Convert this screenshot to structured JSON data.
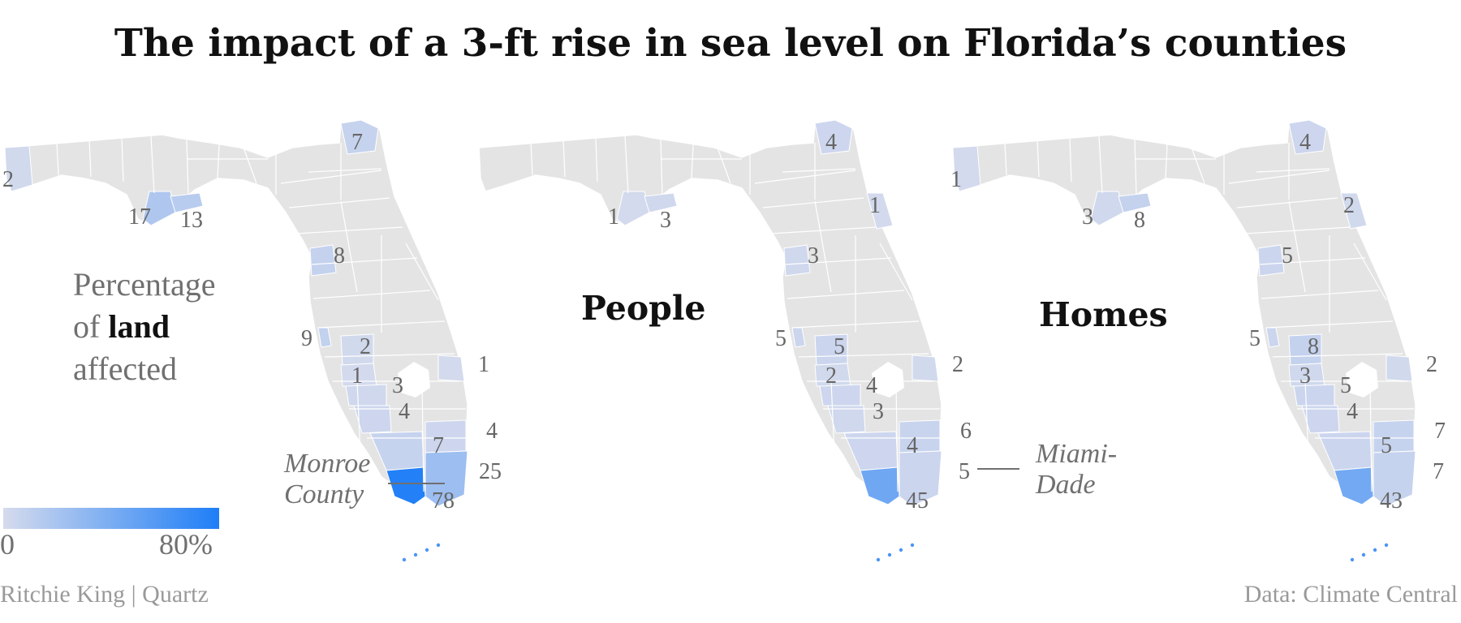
{
  "title": "The impact of a 3-ft rise in sea level on Florida’s counties",
  "colors": {
    "land": "#e4e4e4",
    "border": "#ffffff",
    "scale_low": "#d6dbed",
    "scale_high": "#1e7ef7"
  },
  "legend": {
    "line1": "Percentage",
    "line2_prefix": "of ",
    "line2_bold": "land",
    "line3": "affected",
    "min": "0",
    "max": "80%"
  },
  "panels": [
    {
      "id": "land",
      "label": "",
      "values": {
        "escambia": "2",
        "franklin": "17",
        "wakulla": "13",
        "nassau": "7",
        "pasco": "8",
        "pinellas": "9",
        "hillsborough": "2",
        "manatee": "1",
        "sarasota": "3",
        "charlotte": "4",
        "collier": "7",
        "palmbeach": "1",
        "broward": "4",
        "miamidade": "25",
        "monroe": "78"
      }
    },
    {
      "id": "people",
      "label": "People",
      "values": {
        "franklin": "1",
        "wakulla": "3",
        "nassau": "4",
        "flagler": "1",
        "pasco": "3",
        "pinellas": "5",
        "hillsborough": "5",
        "manatee": "2",
        "sarasota": "4",
        "charlotte": "3",
        "collier": "4",
        "palmbeach": "2",
        "broward": "6",
        "miamidade": "5",
        "monroe": "45"
      }
    },
    {
      "id": "homes",
      "label": "Homes",
      "values": {
        "escambia": "1",
        "franklin": "3",
        "wakulla": "8",
        "nassau": "4",
        "flagler": "2",
        "pasco": "5",
        "pinellas": "5",
        "hillsborough": "8",
        "manatee": "3",
        "sarasota": "5",
        "charlotte": "4",
        "collier": "5",
        "palmbeach": "2",
        "broward": "7",
        "miamidade": "7",
        "monroe": "43"
      }
    }
  ],
  "annotations": {
    "monroe_line1": "Monroe",
    "monroe_line2": "County",
    "miami_line1": "Miami-",
    "miami_line2": "Dade"
  },
  "source_left": "Ritchie King | Quartz",
  "source_right": "Data: Climate Central"
}
